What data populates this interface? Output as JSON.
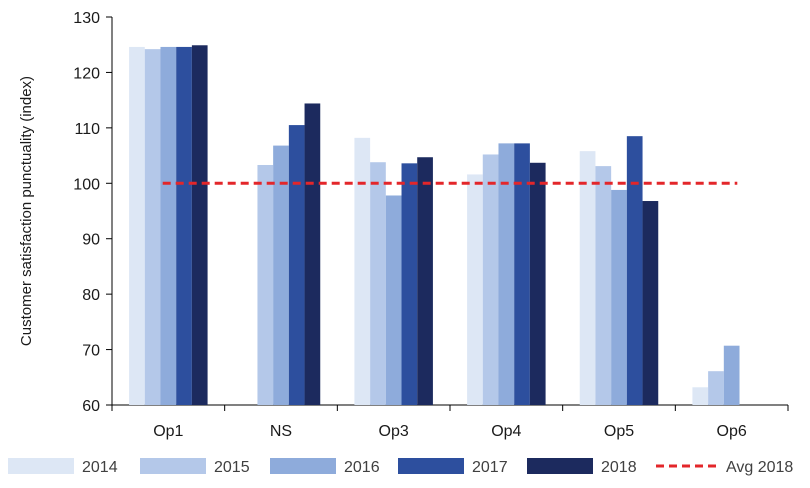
{
  "chart_data": {
    "type": "bar",
    "ylabel": "Customer satisfaction punctuality (index)",
    "xlabel": "",
    "ylim": [
      60,
      130
    ],
    "yticks": [
      60,
      70,
      80,
      90,
      100,
      110,
      120,
      130
    ],
    "categories": [
      "Op1",
      "NS",
      "Op3",
      "Op4",
      "Op5",
      "Op6"
    ],
    "series": [
      {
        "name": "2014",
        "color": "#dde7f5",
        "values": [
          124.6,
          null,
          108.2,
          101.6,
          105.8,
          63.2
        ]
      },
      {
        "name": "2015",
        "color": "#b4c8e9",
        "values": [
          124.2,
          103.3,
          103.8,
          105.2,
          103.1,
          66.1
        ]
      },
      {
        "name": "2016",
        "color": "#8eabdb",
        "values": [
          124.6,
          106.8,
          97.8,
          107.2,
          98.8,
          70.7
        ]
      },
      {
        "name": "2017",
        "color": "#2d4f9e",
        "values": [
          124.6,
          110.5,
          103.6,
          107.2,
          108.5,
          null
        ]
      },
      {
        "name": "2018",
        "color": "#1c2a5e",
        "values": [
          124.9,
          114.4,
          104.7,
          103.7,
          96.8,
          null
        ]
      }
    ],
    "reference_line": {
      "name": "Avg 2018",
      "value": 100,
      "color": "#e3262a",
      "style": "dashed"
    },
    "grid": false,
    "legend_position": "bottom"
  }
}
